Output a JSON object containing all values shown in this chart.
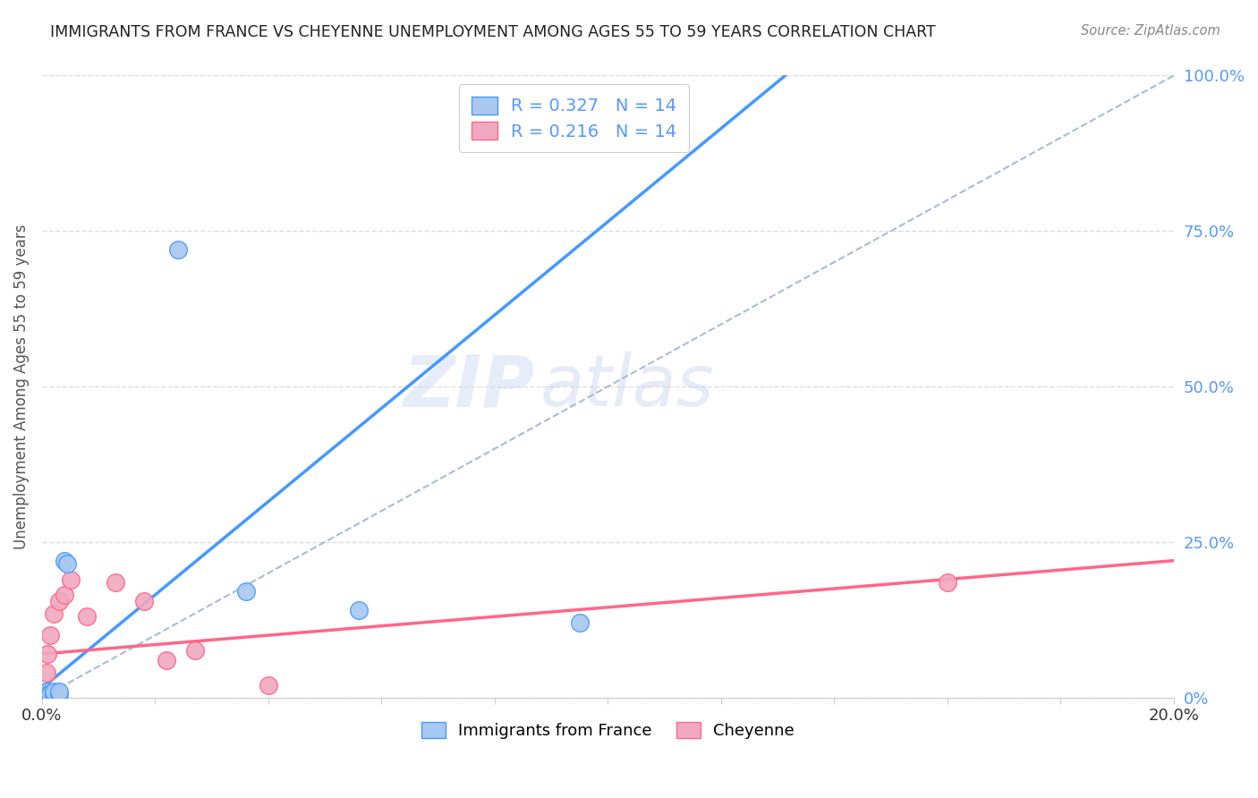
{
  "title": "IMMIGRANTS FROM FRANCE VS CHEYENNE UNEMPLOYMENT AMONG AGES 55 TO 59 YEARS CORRELATION CHART",
  "source": "Source: ZipAtlas.com",
  "ylabel": "Unemployment Among Ages 55 to 59 years",
  "xlim": [
    0.0,
    0.2
  ],
  "ylim": [
    0.0,
    1.0
  ],
  "xticks": [
    0.0,
    0.02,
    0.04,
    0.06,
    0.08,
    0.1,
    0.12,
    0.14,
    0.16,
    0.18,
    0.2
  ],
  "yticks": [
    0.0,
    0.25,
    0.5,
    0.75,
    1.0
  ],
  "ytick_labels_right": [
    "0%",
    "25.0%",
    "50.0%",
    "75.0%",
    "100.0%"
  ],
  "blue_scatter_x": [
    0.0008,
    0.001,
    0.0012,
    0.0015,
    0.002,
    0.002,
    0.003,
    0.003,
    0.004,
    0.0045,
    0.024,
    0.036,
    0.056,
    0.095
  ],
  "blue_scatter_y": [
    0.01,
    0.01,
    0.005,
    0.005,
    0.005,
    0.01,
    0.005,
    0.01,
    0.22,
    0.215,
    0.72,
    0.17,
    0.14,
    0.12
  ],
  "pink_scatter_x": [
    0.0008,
    0.001,
    0.0015,
    0.002,
    0.003,
    0.004,
    0.005,
    0.008,
    0.013,
    0.018,
    0.022,
    0.027,
    0.04,
    0.16
  ],
  "pink_scatter_y": [
    0.04,
    0.07,
    0.1,
    0.135,
    0.155,
    0.165,
    0.19,
    0.13,
    0.185,
    0.155,
    0.06,
    0.075,
    0.02,
    0.185
  ],
  "blue_line_x0": 0.0,
  "blue_line_y0": 0.015,
  "blue_line_slope": 7.5,
  "pink_line_x0": 0.0,
  "pink_line_y0": 0.07,
  "pink_line_slope": 0.75,
  "dashed_line_color": "#aabbd4",
  "blue_color": "#a8c8f0",
  "pink_color": "#f0a8c0",
  "blue_line_color": "#4499ff",
  "pink_line_color": "#ff6688",
  "R_blue": 0.327,
  "N_blue": 14,
  "R_pink": 0.216,
  "N_pink": 14,
  "legend_blue_label": "Immigrants from France",
  "legend_pink_label": "Cheyenne",
  "watermark_zip": "ZIP",
  "watermark_atlas": "atlas",
  "title_color": "#222222",
  "axis_label_color": "#555555",
  "tick_color_right": "#5599ff",
  "grid_color": "#dddddd",
  "grid_style": "--"
}
